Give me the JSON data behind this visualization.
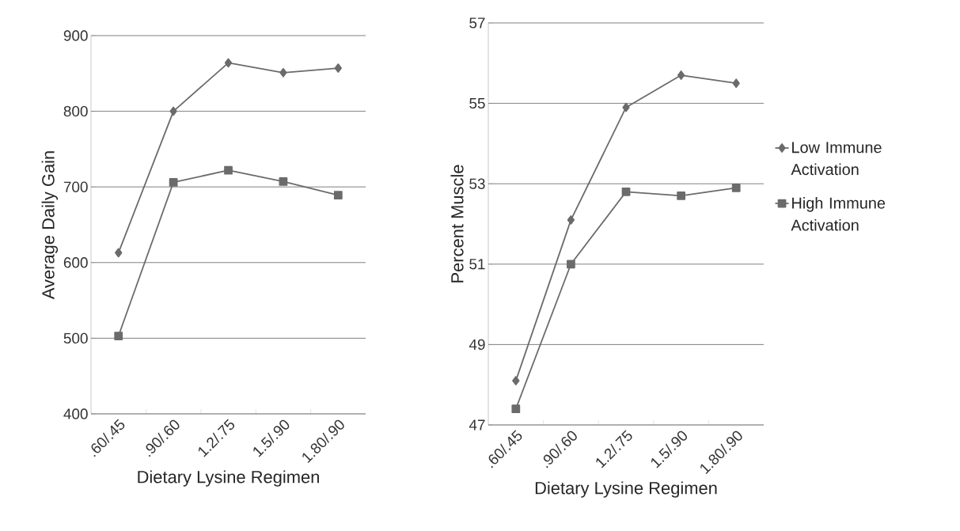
{
  "chart_data": [
    {
      "type": "line",
      "xlabel": "Dietary Lysine Regimen",
      "ylabel": "Average Daily Gain",
      "categories": [
        ".60/.45",
        ".90/.60",
        "1.2/.75",
        "1.5/.90",
        "1.80/.90"
      ],
      "series": [
        {
          "color": "#6b6b6b",
          "marker": "diamond",
          "values": [
            613,
            800,
            864,
            851,
            857
          ]
        },
        {
          "color": "#6b6b6b",
          "marker": "square",
          "values": [
            503,
            706,
            722,
            707,
            689
          ]
        }
      ],
      "ylim": [
        400,
        900
      ],
      "yticks": [
        400,
        500,
        600,
        700,
        800,
        900
      ],
      "grid": "y",
      "legend": false
    },
    {
      "type": "line",
      "xlabel": "Dietary Lysine Regimen",
      "ylabel": "Percent Muscle",
      "categories": [
        ".60/.45",
        ".90/.60",
        "1.2/.75",
        "1.5/.90",
        "1.80/.90"
      ],
      "series": [
        {
          "name": "Low Immune Activation",
          "color": "#6b6b6b",
          "marker": "diamond",
          "values": [
            48.1,
            52.1,
            54.9,
            55.7,
            55.5
          ]
        },
        {
          "name": "High Immune Activation",
          "color": "#6b6b6b",
          "marker": "square",
          "values": [
            47.4,
            51.0,
            52.8,
            52.7,
            52.9
          ]
        }
      ],
      "ylim": [
        47,
        57
      ],
      "yticks": [
        47,
        49,
        51,
        53,
        55,
        57
      ],
      "grid": "y",
      "legend": "right"
    }
  ]
}
